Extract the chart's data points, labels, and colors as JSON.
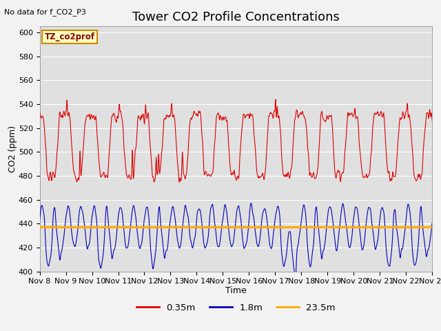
{
  "title": "Tower CO2 Profile Concentrations",
  "no_data_text": "No data for f_CO2_P3",
  "legend_box_text": "TZ_co2prof",
  "xlabel": "Time",
  "ylabel": "CO2 (ppm)",
  "ylim": [
    400,
    605
  ],
  "yticks": [
    400,
    420,
    440,
    460,
    480,
    500,
    520,
    540,
    560,
    580,
    600
  ],
  "n_days": 15,
  "red_line_color": "#dd0000",
  "blue_line_color": "#0000bb",
  "orange_line_color": "#ffaa00",
  "orange_line_value": 437,
  "plot_bg_color": "#e0e0e0",
  "fig_bg_color": "#f2f2f2",
  "legend_entries": [
    "0.35m",
    "1.8m",
    "23.5m"
  ],
  "legend_colors": [
    "#dd0000",
    "#0000bb",
    "#ffaa00"
  ],
  "title_fontsize": 13,
  "axis_label_fontsize": 9,
  "tick_fontsize": 8
}
